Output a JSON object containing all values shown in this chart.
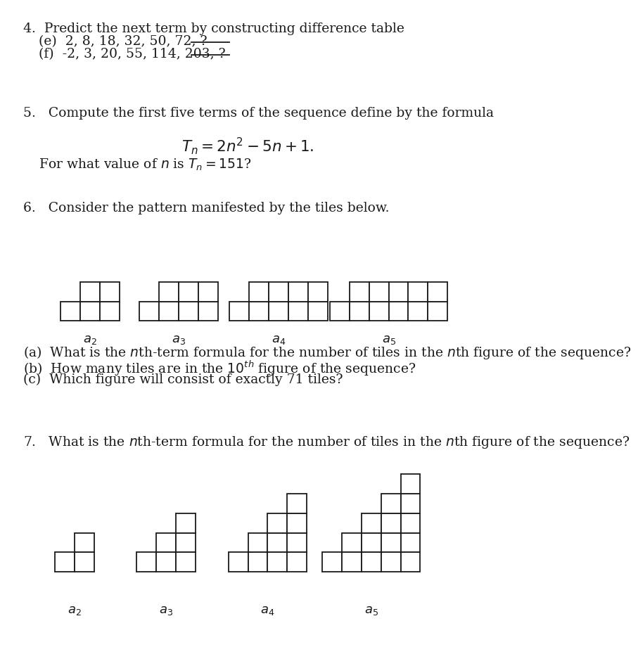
{
  "bg_color": "#ffffff",
  "text_color": "#1a1a1a",
  "font_family": "serif",
  "q4_main": "4.  Predict the next term by constructing difference table",
  "q4_e": "(e)  2, 8, 18, 32, 50, 72, ?",
  "q4_f": "(f)  -2, 3, 20, 55, 114, 203, ?",
  "q5_main": "5.   Compute the first five terms of the sequence define by the formula",
  "q5_formula": "$T_n = 2n^2 - 5n + 1.$",
  "q5_sub": "For what value of $n$ is $T_n = 151$?",
  "q6_main": "6.   Consider the pattern manifested by the tiles below.",
  "q6a": "(a)  What is the $n$th-term formula for the number of tiles in the $n$th figure of the sequence?",
  "q6b": "(b)  How many tiles are in the $10^{th}$ figure of the sequence?",
  "q6c": "(c)  Which figure will consist of exactly 71 tiles?",
  "q7_main": "7.   What is the $n$th-term formula for the number of tiles in the $n$th figure of the sequence?",
  "fontsize_main": 13.5,
  "fontsize_label": 13.0,
  "lw": 1.3
}
